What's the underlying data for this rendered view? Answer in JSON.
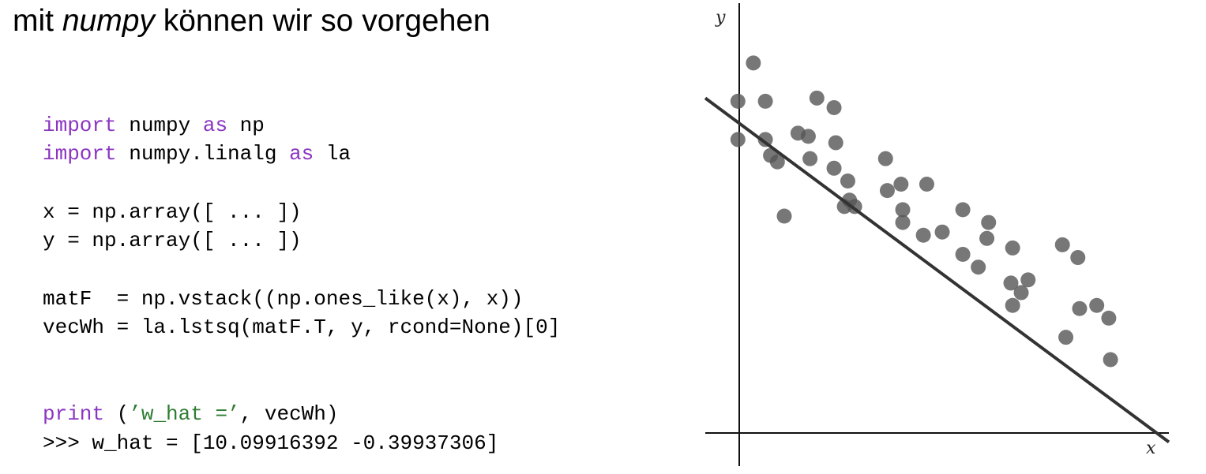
{
  "title": {
    "prefix": "mit ",
    "emph": "numpy",
    "suffix": " können wir so vorgehen"
  },
  "code": {
    "line1": {
      "kw1": "import",
      "a": " numpy ",
      "kw2": "as",
      "b": " np"
    },
    "line2": {
      "kw1": "import",
      "a": " numpy.linalg ",
      "kw2": "as",
      "b": " la"
    },
    "line3": "x = np.array([ ... ])",
    "line4": "y = np.array([ ... ])",
    "line5": "matF  = np.vstack((np.ones_like(x), x))",
    "line6": "vecWh = la.lstsq(matF.T, y, rcond=None)[0]",
    "line7": {
      "kw": "print",
      "a": " (",
      "str": "’w_hat =’",
      "b": ", vecWh)"
    },
    "line8": ">>> w_hat = [10.09916392 -0.39937306]"
  },
  "chart_data": {
    "type": "scatter",
    "xlabel": "x",
    "ylabel": "y",
    "xlim": [
      -1,
      26
    ],
    "ylim": [
      0,
      13.5
    ],
    "grid": false,
    "point_color": "#555555",
    "line_color": "#333333",
    "fit_line": {
      "intercept": 10.09916392,
      "slope": -0.39937306
    },
    "x": [
      0.9,
      1.8,
      0.9,
      2.5,
      2.5,
      2.8,
      3.2,
      3.6,
      4.4,
      5.0,
      5.1,
      5.5,
      6.5,
      6.6,
      6.5,
      7.1,
      7.3,
      7.4,
      7.7,
      9.5,
      9.6,
      10.4,
      10.5,
      10.5,
      11.7,
      11.9,
      12.8,
      14.0,
      14.0,
      14.9,
      15.4,
      15.5,
      16.8,
      16.9,
      16.9,
      17.4,
      17.8,
      19.8,
      20.7,
      20.0,
      20.8,
      21.8,
      22.5,
      22.6
    ],
    "y": [
      10.4,
      11.6,
      9.2,
      10.4,
      9.2,
      8.7,
      8.5,
      6.8,
      9.4,
      9.3,
      8.6,
      10.5,
      10.2,
      9.1,
      8.3,
      7.1,
      7.9,
      7.3,
      7.1,
      8.6,
      7.6,
      7.8,
      6.6,
      7.0,
      6.2,
      7.8,
      6.3,
      5.6,
      7.0,
      5.2,
      6.1,
      6.6,
      4.7,
      5.8,
      4.0,
      4.4,
      4.8,
      5.9,
      5.5,
      3.0,
      3.9,
      4.0,
      3.6,
      2.3
    ]
  }
}
